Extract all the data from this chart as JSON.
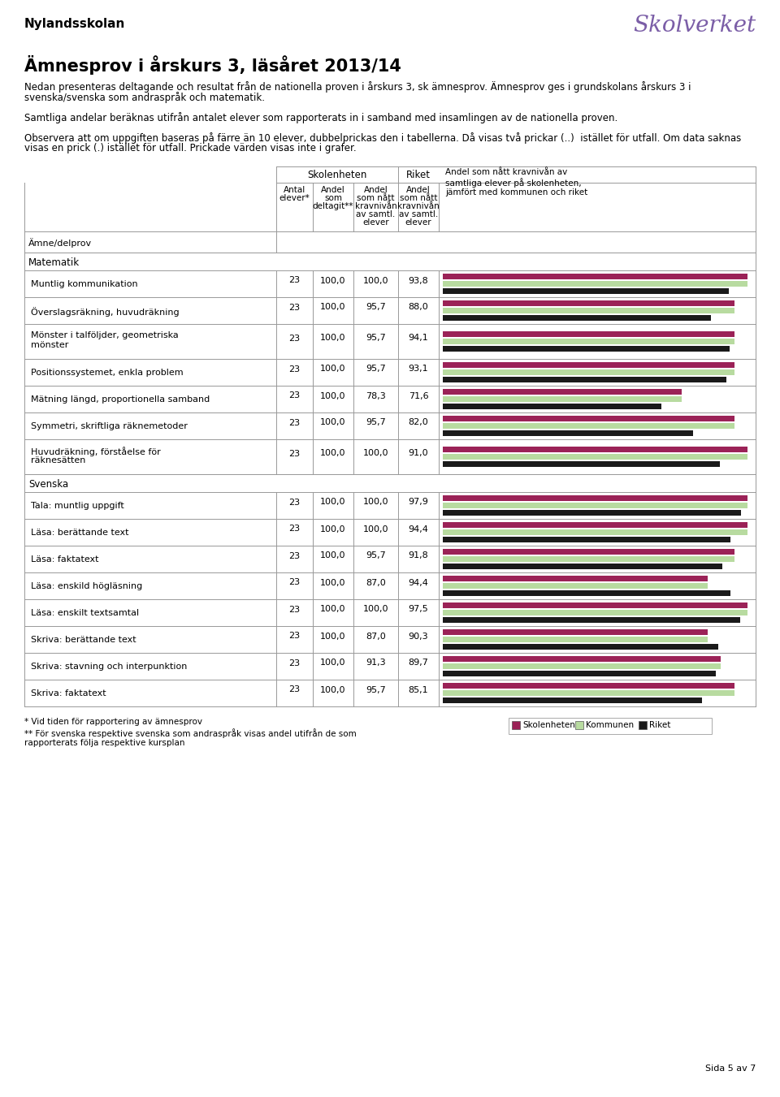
{
  "school_name": "Nylandsskolan",
  "title": "Ämnesprov i årskurs 3, läsåret 2013/14",
  "subtitle1": "Nedan presenteras deltagande och resultat från de nationella proven i årskurs 3, sk ämnesprov. Ämnesprov ges i grundskolans årskurs 3 i",
  "subtitle2": "svenska/svenska som andraspråk och matematik.",
  "para1": "Samtliga andelar beräknas utifrån antalet elever som rapporterats in i samband med insamlingen av de nationella proven.",
  "para2a": "Observera att om uppgiften baseras på färre än 10 elever, dubbelprickas den i tabellerna. Då visas två prickar (..)  istället för utfall. Om data saknas",
  "para2b": "visas en prick (.) istället för utfall. Prickade värden visas inte i grafer.",
  "col_group1": "Skolenheten",
  "col_group2": "Riket",
  "col_last": "Andel som nått kravnivån av\nsamtliga elever på skolenheten,\njämfört med kommunen och riket",
  "subject_label": "Ämne/delprov",
  "section_matematik": "Matematik",
  "section_svenska": "Svenska",
  "rows": [
    {
      "name": "Muntlig kommunikation",
      "antal": 23,
      "deltagit": "100,0",
      "skolan_krav": "100,0",
      "riket_krav": "93,8",
      "skolan_val": 100.0,
      "kommun_val": 100.0,
      "riket_val": 93.8,
      "two_line": false
    },
    {
      "name": "Överslagsräkning, huvudräkning",
      "antal": 23,
      "deltagit": "100,0",
      "skolan_krav": "95,7",
      "riket_krav": "88,0",
      "skolan_val": 95.7,
      "kommun_val": 95.7,
      "riket_val": 88.0,
      "two_line": false
    },
    {
      "name": "Mönster i talföljder, geometriska",
      "name2": "mönster",
      "antal": 23,
      "deltagit": "100,0",
      "skolan_krav": "95,7",
      "riket_krav": "94,1",
      "skolan_val": 95.7,
      "kommun_val": 95.7,
      "riket_val": 94.1,
      "two_line": true
    },
    {
      "name": "Positionssystemet, enkla problem",
      "antal": 23,
      "deltagit": "100,0",
      "skolan_krav": "95,7",
      "riket_krav": "93,1",
      "skolan_val": 95.7,
      "kommun_val": 95.7,
      "riket_val": 93.1,
      "two_line": false
    },
    {
      "name": "Mätning längd, proportionella samband",
      "antal": 23,
      "deltagit": "100,0",
      "skolan_krav": "78,3",
      "riket_krav": "71,6",
      "skolan_val": 78.3,
      "kommun_val": 78.3,
      "riket_val": 71.6,
      "two_line": false
    },
    {
      "name": "Symmetri, skriftliga räknemetoder",
      "antal": 23,
      "deltagit": "100,0",
      "skolan_krav": "95,7",
      "riket_krav": "82,0",
      "skolan_val": 95.7,
      "kommun_val": 95.7,
      "riket_val": 82.0,
      "two_line": false
    },
    {
      "name": "Huvudräkning, förståelse för",
      "name2": "räknesätten",
      "antal": 23,
      "deltagit": "100,0",
      "skolan_krav": "100,0",
      "riket_krav": "91,0",
      "skolan_val": 100.0,
      "kommun_val": 100.0,
      "riket_val": 91.0,
      "two_line": true
    },
    {
      "name": "Tala: muntlig uppgift",
      "antal": 23,
      "deltagit": "100,0",
      "skolan_krav": "100,0",
      "riket_krav": "97,9",
      "skolan_val": 100.0,
      "kommun_val": 100.0,
      "riket_val": 97.9,
      "two_line": false
    },
    {
      "name": "Läsa: berättande text",
      "antal": 23,
      "deltagit": "100,0",
      "skolan_krav": "100,0",
      "riket_krav": "94,4",
      "skolan_val": 100.0,
      "kommun_val": 100.0,
      "riket_val": 94.4,
      "two_line": false
    },
    {
      "name": "Läsa: faktatext",
      "antal": 23,
      "deltagit": "100,0",
      "skolan_krav": "95,7",
      "riket_krav": "91,8",
      "skolan_val": 95.7,
      "kommun_val": 95.7,
      "riket_val": 91.8,
      "two_line": false
    },
    {
      "name": "Läsa: enskild högläsning",
      "antal": 23,
      "deltagit": "100,0",
      "skolan_krav": "87,0",
      "riket_krav": "94,4",
      "skolan_val": 87.0,
      "kommun_val": 87.0,
      "riket_val": 94.4,
      "two_line": false
    },
    {
      "name": "Läsa: enskilt textsamtal",
      "antal": 23,
      "deltagit": "100,0",
      "skolan_krav": "100,0",
      "riket_krav": "97,5",
      "skolan_val": 100.0,
      "kommun_val": 100.0,
      "riket_val": 97.5,
      "two_line": false
    },
    {
      "name": "Skriva: berättande text",
      "antal": 23,
      "deltagit": "100,0",
      "skolan_krav": "87,0",
      "riket_krav": "90,3",
      "skolan_val": 87.0,
      "kommun_val": 87.0,
      "riket_val": 90.3,
      "two_line": false
    },
    {
      "name": "Skriva: stavning och interpunktion",
      "antal": 23,
      "deltagit": "100,0",
      "skolan_krav": "91,3",
      "riket_krav": "89,7",
      "skolan_val": 91.3,
      "kommun_val": 91.3,
      "riket_val": 89.7,
      "two_line": false
    },
    {
      "name": "Skriva: faktatext",
      "antal": 23,
      "deltagit": "100,0",
      "skolan_krav": "95,7",
      "riket_krav": "85,1",
      "skolan_val": 95.7,
      "kommun_val": 95.7,
      "riket_val": 85.1,
      "two_line": false
    }
  ],
  "matematik_rows": [
    0,
    1,
    2,
    3,
    4,
    5,
    6
  ],
  "svenska_rows": [
    7,
    8,
    9,
    10,
    11,
    12,
    13,
    14
  ],
  "footnote1": "* Vid tiden för rapportering av ämnesprov",
  "footnote2": "** För svenska respektive svenska som andraspråk visas andel utifrån de som",
  "footnote3": "rapporterats följa respektive kursplan",
  "legend_labels": [
    "Skolenheten",
    "Kommunen",
    "Riket"
  ],
  "color_skolan": "#9b2257",
  "color_kommun": "#b8dba0",
  "color_riket": "#1a1a1a",
  "bar_max": 100.0,
  "page_text": "Sida 5 av 7"
}
